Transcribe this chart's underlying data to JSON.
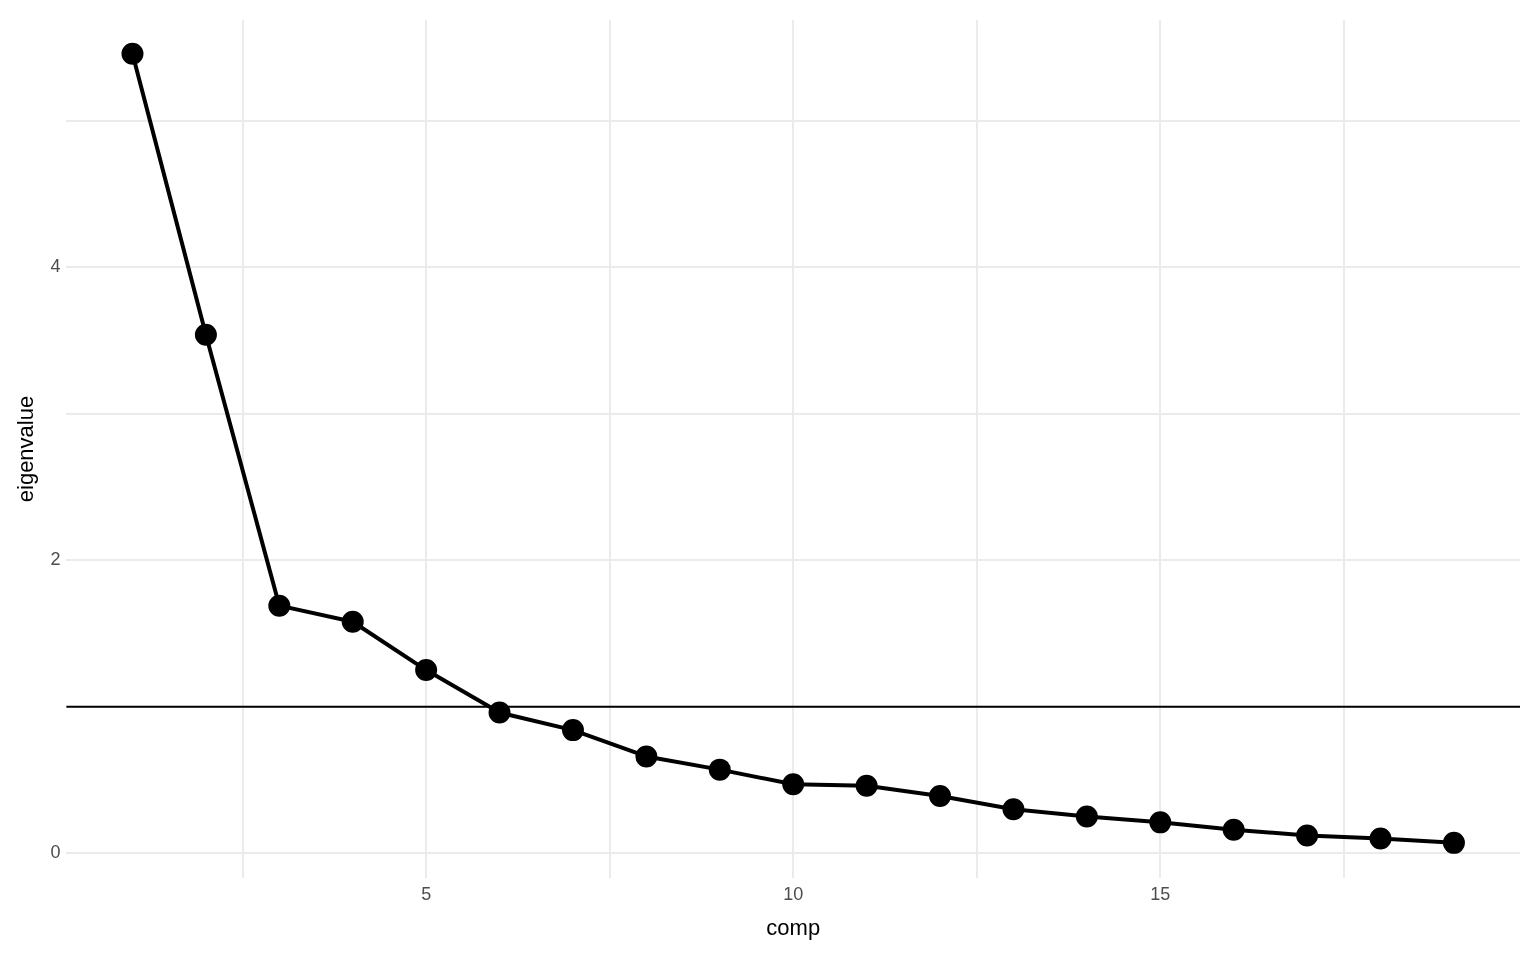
{
  "chart_data": {
    "type": "line",
    "xlabel": "comp",
    "ylabel": "eigenvalue",
    "x": [
      1,
      2,
      3,
      4,
      5,
      6,
      7,
      8,
      9,
      10,
      11,
      12,
      13,
      14,
      15,
      16,
      17,
      18,
      19
    ],
    "series": [
      {
        "color": "#000000",
        "values": [
          5.46,
          3.54,
          1.69,
          1.58,
          1.25,
          0.96,
          0.84,
          0.66,
          0.57,
          0.47,
          0.46,
          0.39,
          0.3,
          0.25,
          0.21,
          0.16,
          0.12,
          0.1,
          0.07
        ]
      }
    ],
    "xlim": [
      0.1,
      19.9
    ],
    "ylim": [
      -0.17,
      5.69
    ],
    "xticks": [
      {
        "value": 2.5,
        "label": null
      },
      5,
      {
        "value": 7.5,
        "label": null
      },
      10,
      {
        "value": 12.5,
        "label": null
      },
      15,
      {
        "value": 17.5,
        "label": null
      }
    ],
    "yticks": [
      0,
      {
        "value": 1,
        "label": null
      },
      2,
      {
        "value": 3,
        "label": null
      },
      4,
      {
        "value": 5,
        "label": null
      }
    ],
    "ref_lines": [
      {
        "axis": "y",
        "value": 1,
        "color": "#000000",
        "line_style": "solid"
      }
    ],
    "grid": true,
    "legend": false,
    "marker": "circle",
    "line_style": "solid"
  }
}
